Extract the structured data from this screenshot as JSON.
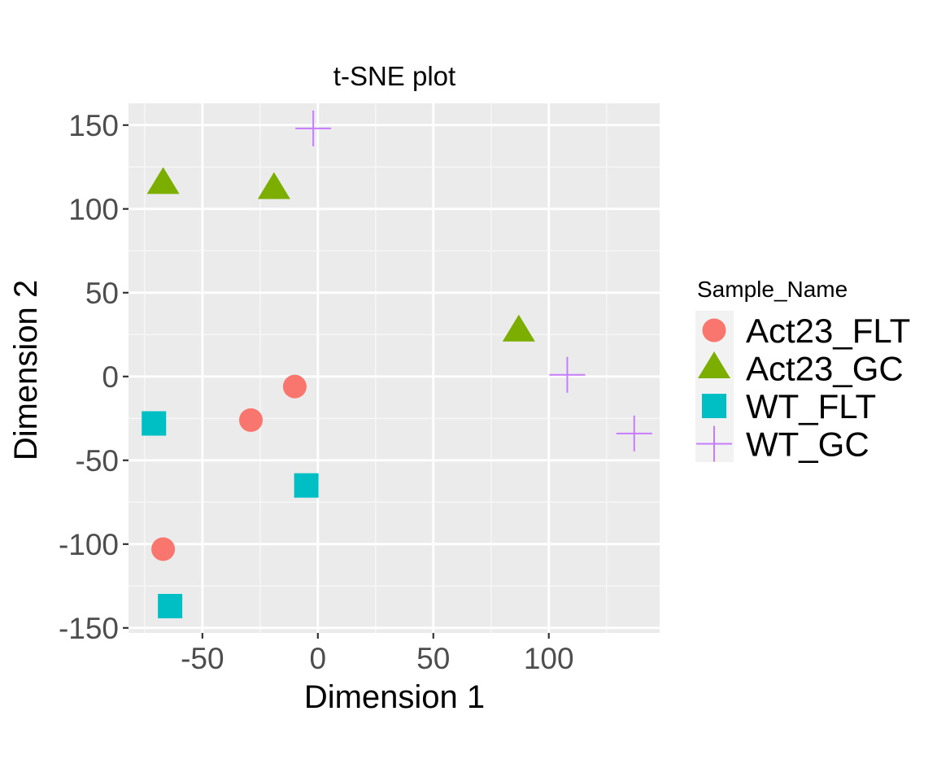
{
  "chart_data": {
    "type": "scatter",
    "title": "t-SNE plot",
    "xlabel": "Dimension 1",
    "ylabel": "Dimension 2",
    "xlim": [
      -82,
      148
    ],
    "ylim": [
      -153,
      163
    ],
    "x_ticks": [
      -50,
      0,
      50,
      100
    ],
    "y_ticks": [
      150,
      100,
      50,
      0,
      -50,
      -100,
      -150
    ],
    "x_tick_labels": [
      "-50",
      "0",
      "50",
      "100"
    ],
    "y_tick_labels": [
      "150",
      "100",
      "50",
      "0",
      "-50",
      "-100",
      "-150"
    ],
    "grid": true,
    "background": "#ebebeb",
    "legend": {
      "title": "Sample_Name",
      "position": "right"
    },
    "series": [
      {
        "name": "Act23_FLT",
        "shape": "circle",
        "color": "#f8766d",
        "points": [
          [
            -10,
            -6
          ],
          [
            -29,
            -26
          ],
          [
            -67,
            -103
          ]
        ]
      },
      {
        "name": "Act23_GC",
        "shape": "triangle",
        "color": "#7cae00",
        "points": [
          [
            -67,
            115
          ],
          [
            -19,
            112
          ],
          [
            87,
            27
          ]
        ]
      },
      {
        "name": "WT_FLT",
        "shape": "square",
        "color": "#00bfc4",
        "points": [
          [
            -71,
            -28
          ],
          [
            -5,
            -65
          ],
          [
            -64,
            -137
          ]
        ]
      },
      {
        "name": "WT_GC",
        "shape": "cross",
        "color": "#c77cff",
        "points": [
          [
            -2,
            148
          ],
          [
            108,
            1
          ],
          [
            137,
            -34
          ]
        ]
      }
    ]
  }
}
